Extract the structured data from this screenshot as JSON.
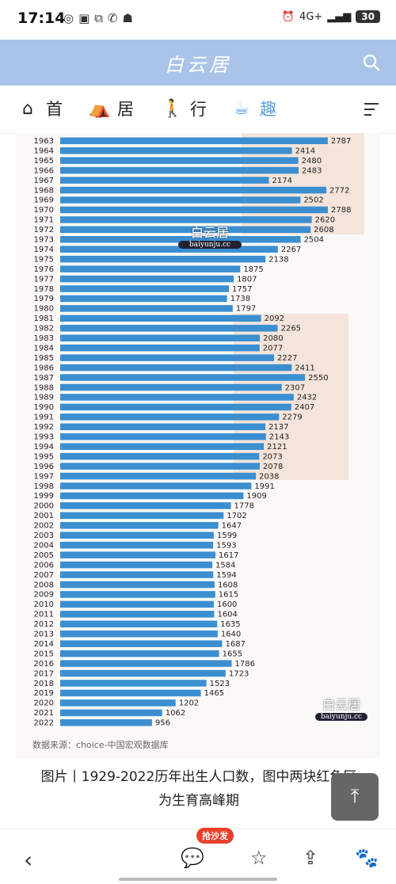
{
  "status_bar": {
    "time": "17:14",
    "network": "4G+",
    "battery": "30"
  },
  "header": {
    "site_logo": "白云居"
  },
  "nav": {
    "items": [
      {
        "label": "首",
        "icon": "home-icon"
      },
      {
        "label": "居",
        "icon": "house-face-icon"
      },
      {
        "label": "行",
        "icon": "walker-icon"
      },
      {
        "label": "趣",
        "icon": "coffee-icon"
      }
    ]
  },
  "watermark": {
    "text": "白云居",
    "url": "baiyunju.cc"
  },
  "chart_data": {
    "type": "bar",
    "orientation": "horizontal",
    "categories": [
      "1963",
      "1964",
      "1965",
      "1966",
      "1967",
      "1968",
      "1969",
      "1970",
      "1971",
      "1972",
      "1973",
      "1974",
      "1975",
      "1976",
      "1977",
      "1978",
      "1979",
      "1980",
      "1981",
      "1982",
      "1983",
      "1984",
      "1985",
      "1986",
      "1987",
      "1988",
      "1989",
      "1990",
      "1991",
      "1992",
      "1993",
      "1994",
      "1995",
      "1996",
      "1997",
      "1998",
      "1999",
      "2000",
      "2001",
      "2002",
      "2003",
      "2004",
      "2005",
      "2006",
      "2007",
      "2008",
      "2009",
      "2010",
      "2011",
      "2012",
      "2013",
      "2014",
      "2015",
      "2016",
      "2017",
      "2018",
      "2019",
      "2020",
      "2021",
      "2022"
    ],
    "values": [
      2787,
      2414,
      2480,
      2483,
      2174,
      2772,
      2502,
      2788,
      2620,
      2608,
      2504,
      2267,
      2138,
      1875,
      1807,
      1757,
      1738,
      1797,
      2092,
      2265,
      2080,
      2077,
      2227,
      2411,
      2550,
      2307,
      2432,
      2407,
      2279,
      2137,
      2143,
      2121,
      2073,
      2078,
      2038,
      1991,
      1909,
      1778,
      1702,
      1647,
      1599,
      1593,
      1617,
      1584,
      1594,
      1608,
      1615,
      1600,
      1604,
      1635,
      1640,
      1687,
      1655,
      1786,
      1723,
      1523,
      1465,
      1202,
      1062,
      956
    ],
    "source": "数据来源：choice-中国宏观数据库",
    "bar_color": "#3b8fd0",
    "highlight_color": "#f3dcd2"
  },
  "caption": {
    "line1": "图片丨1929-2022历年出生人口数，图中两块红色区",
    "line2": "为生育高峰期"
  },
  "to_top": {
    "label": "⤒"
  },
  "bottom_bar": {
    "back": "‹",
    "comment_badge": "抢沙发"
  }
}
